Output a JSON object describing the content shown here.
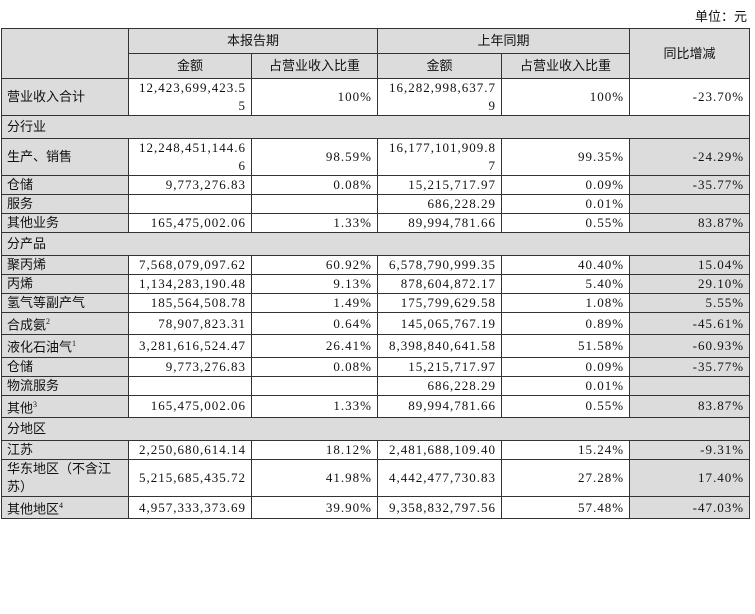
{
  "header": {
    "unit": "单位：元",
    "current": "本报告期",
    "previous": "上年同期",
    "yoy": "同比增减",
    "sub": [
      "金额",
      "占营业收入比重",
      "金额",
      "占营业收入比重"
    ]
  },
  "table": {
    "rows": [
      {
        "label": "营业收入合计",
        "amount": "12,423,699,423.55",
        "share": "100%",
        "prev_amount": "16,282,998,637.79",
        "prev_share": "100%",
        "yoy": "-23.70%",
        "total": true
      },
      {
        "section": "分行业"
      },
      {
        "label": "生产、销售",
        "amount": "12,248,451,144.66",
        "share": "98.59%",
        "prev_amount": "16,177,101,909.87",
        "prev_share": "99.35%",
        "yoy": "-24.29%"
      },
      {
        "label": "仓储",
        "amount": "9,773,276.83",
        "share": "0.08%",
        "prev_amount": "15,215,717.97",
        "prev_share": "0.09%",
        "yoy": "-35.77%"
      },
      {
        "label": "服务",
        "prev_amount": "686,228.29",
        "prev_share": "0.01%"
      },
      {
        "label": "其他业务",
        "amount": "165,475,002.06",
        "share": "1.33%",
        "prev_amount": "89,994,781.66",
        "prev_share": "0.55%",
        "yoy": "83.87%"
      },
      {
        "section": "分产品"
      },
      {
        "label": "聚丙烯",
        "amount": "7,568,079,097.62",
        "share": "60.92%",
        "prev_amount": "6,578,790,999.35",
        "prev_share": "40.40%",
        "yoy": "15.04%"
      },
      {
        "label": "丙烯",
        "amount": "1,134,283,190.48",
        "share": "9.13%",
        "prev_amount": "878,604,872.17",
        "prev_share": "5.40%",
        "yoy": "29.10%"
      },
      {
        "label": "氢气等副产气",
        "amount": "185,564,508.78",
        "share": "1.49%",
        "prev_amount": "175,799,629.58",
        "prev_share": "1.08%",
        "yoy": "5.55%"
      },
      {
        "label": "合成氨",
        "note": "2",
        "amount": "78,907,823.31",
        "share": "0.64%",
        "prev_amount": "145,065,767.19",
        "prev_share": "0.89%",
        "yoy": "-45.61%"
      },
      {
        "label": "液化石油气",
        "note": "1",
        "amount": "3,281,616,524.47",
        "share": "26.41%",
        "prev_amount": "8,398,840,641.58",
        "prev_share": "51.58%",
        "yoy": "-60.93%"
      },
      {
        "label": "仓储",
        "amount": "9,773,276.83",
        "share": "0.08%",
        "prev_amount": "15,215,717.97",
        "prev_share": "0.09%",
        "yoy": "-35.77%"
      },
      {
        "label": "物流服务",
        "prev_amount": "686,228.29",
        "prev_share": "0.01%"
      },
      {
        "label": "其他",
        "note": "3",
        "amount": "165,475,002.06",
        "share": "1.33%",
        "prev_amount": "89,994,781.66",
        "prev_share": "0.55%",
        "yoy": "83.87%"
      },
      {
        "section": "分地区"
      },
      {
        "label": "江苏",
        "amount": "2,250,680,614.14",
        "share": "18.12%",
        "prev_amount": "2,481,688,109.40",
        "prev_share": "15.24%",
        "yoy": "-9.31%"
      },
      {
        "label": "华东地区（不含江苏）",
        "amount": "5,215,685,435.72",
        "share": "41.98%",
        "prev_amount": "4,442,477,730.83",
        "prev_share": "27.28%",
        "yoy": "17.40%"
      },
      {
        "label": "其他地区",
        "note": "4",
        "amount": "4,957,333,373.69",
        "share": "39.90%",
        "prev_amount": "9,358,832,797.56",
        "prev_share": "57.48%",
        "yoy": "-47.03%"
      }
    ]
  }
}
